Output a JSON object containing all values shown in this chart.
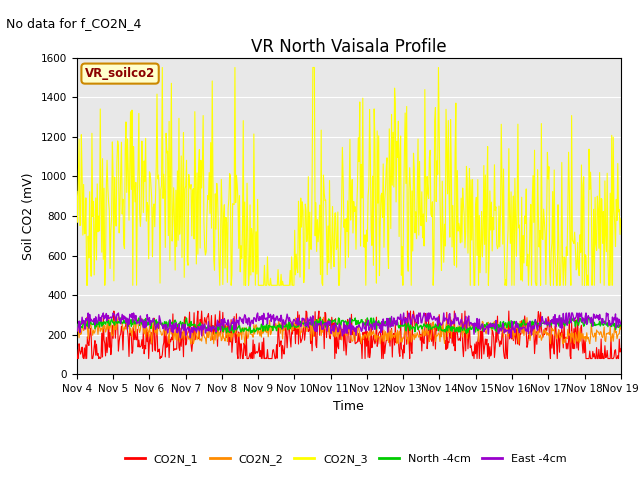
{
  "title": "VR North Vaisala Profile",
  "subtitle": "No data for f_CO2N_4",
  "ylabel": "Soil CO2 (mV)",
  "xlabel": "Time",
  "ylim": [
    0,
    1600
  ],
  "xlim": [
    0,
    15
  ],
  "yticks": [
    0,
    200,
    400,
    600,
    800,
    1000,
    1200,
    1400,
    1600
  ],
  "xtick_labels": [
    "Nov 4",
    "Nov 5",
    "Nov 6",
    "Nov 7",
    "Nov 8",
    "Nov 9",
    "Nov 10",
    "Nov 11",
    "Nov 12",
    "Nov 13",
    "Nov 14",
    "Nov 15",
    "Nov 16",
    "Nov 17",
    "Nov 18",
    "Nov 19"
  ],
  "legend_box_label": "VR_soilco2",
  "legend_box_facecolor": "#ffffcc",
  "legend_box_edgecolor": "#cc8800",
  "legend_box_text_color": "#8B0000",
  "series": {
    "CO2N_1": {
      "color": "#ff0000",
      "lw": 0.8
    },
    "CO2N_2": {
      "color": "#ff8c00",
      "lw": 0.8
    },
    "CO2N_3": {
      "color": "#ffff00",
      "lw": 0.8
    },
    "North_4cm": {
      "color": "#00cc00",
      "lw": 1.0
    },
    "East_4cm": {
      "color": "#9900cc",
      "lw": 1.0
    }
  },
  "legend_labels": [
    "CO2N_1",
    "CO2N_2",
    "CO2N_3",
    "North -4cm",
    "East -4cm"
  ],
  "legend_colors": [
    "#ff0000",
    "#ff8c00",
    "#ffff00",
    "#00cc00",
    "#9900cc"
  ],
  "bg_color": "#e8e8e8",
  "title_fontsize": 12,
  "label_fontsize": 9,
  "tick_fontsize": 7.5,
  "subtitle_fontsize": 9
}
